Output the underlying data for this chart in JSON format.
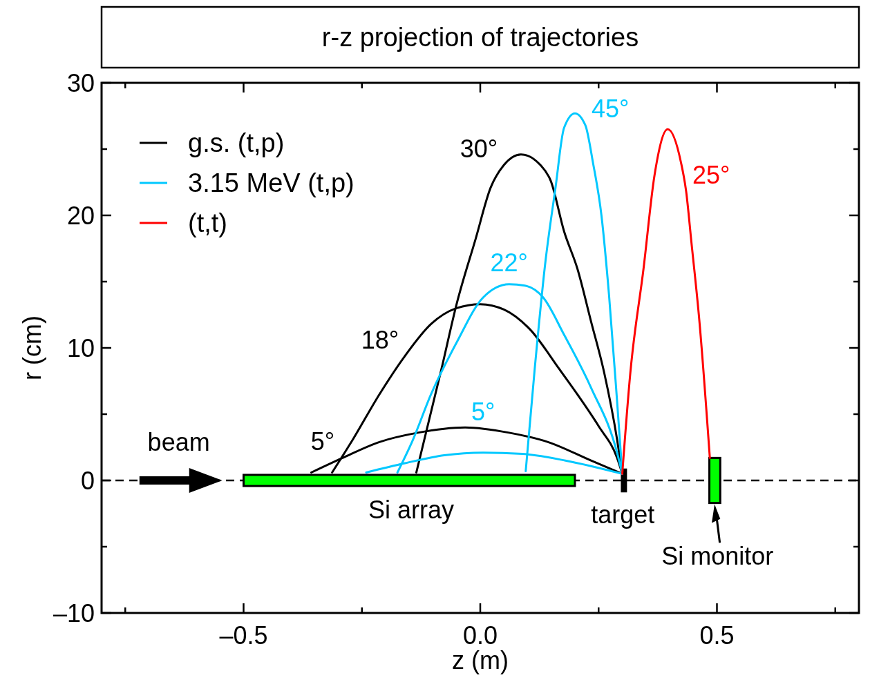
{
  "chart_data": {
    "type": "line",
    "title": "r-z projection of trajectories",
    "xlabel": "z (m)",
    "ylabel": "r (cm)",
    "xlim": [
      -0.8,
      0.8
    ],
    "ylim": [
      -10,
      30
    ],
    "xticks": [
      {
        "value": -0.75,
        "label": null
      },
      {
        "value": -0.5,
        "label": "–0.5"
      },
      {
        "value": -0.25,
        "label": null
      },
      {
        "value": 0,
        "label": "0.0"
      },
      {
        "value": 0.25,
        "label": null
      },
      {
        "value": 0.5,
        "label": "0.5"
      },
      {
        "value": 0.75,
        "label": null
      }
    ],
    "yticks": [
      {
        "value": -10,
        "label": "–10"
      },
      {
        "value": -5,
        "label": null
      },
      0,
      {
        "value": 5,
        "label": null
      },
      10,
      {
        "value": 15,
        "label": null
      },
      20,
      {
        "value": 25,
        "label": null
      },
      30
    ],
    "legend": "top left",
    "marker": "none",
    "line_style": "solid",
    "ref_lines": [
      {
        "axis": "y",
        "value": 0,
        "color": "#000000",
        "line_style": "dashed"
      }
    ],
    "series": [
      {
        "name": "g.s. (t,p)",
        "color": "#000000",
        "x": [
          -0.357,
          -0.291,
          -0.213,
          -0.132,
          -0.032,
          0.061,
          0.143,
          0.234,
          0.3
        ],
        "values": [
          0.6,
          1.7,
          2.9,
          3.6,
          4.0,
          3.6,
          2.9,
          1.5,
          0.5
        ]
      },
      {
        "color": "#000000",
        "x": [
          -0.313,
          -0.269,
          -0.213,
          -0.159,
          -0.104,
          -0.05,
          0.0,
          0.05,
          0.105,
          0.167,
          0.205,
          0.25,
          0.289,
          0.3
        ],
        "values": [
          0.6,
          3.1,
          6.5,
          9.4,
          11.8,
          13.0,
          13.3,
          12.9,
          11.4,
          8.4,
          6.5,
          4.1,
          1.7,
          0.5
        ]
      },
      {
        "color": "#000000",
        "x": [
          -0.135,
          -0.082,
          -0.05,
          -0.01,
          0.022,
          0.05,
          0.086,
          0.127,
          0.149,
          0.177,
          0.205,
          0.234,
          0.262,
          0.289,
          0.3
        ],
        "values": [
          0.6,
          8.4,
          13.3,
          18.2,
          22.1,
          23.8,
          24.6,
          23.8,
          22.6,
          18.8,
          16.0,
          12.0,
          8.1,
          3.1,
          0.5
        ]
      },
      {
        "name": "3.15 MeV (t,p)",
        "color": "#00c8ff",
        "x": [
          -0.241,
          -0.159,
          -0.076,
          0.006,
          0.089,
          0.18,
          0.3
        ],
        "values": [
          0.6,
          1.3,
          1.9,
          2.1,
          2.0,
          1.5,
          0.5
        ]
      },
      {
        "color": "#00c8ff",
        "x": [
          -0.175,
          -0.143,
          -0.104,
          -0.05,
          0.006,
          0.061,
          0.094,
          0.133,
          0.177,
          0.234,
          0.289,
          0.3
        ],
        "values": [
          0.6,
          3.0,
          6.5,
          10.4,
          13.8,
          14.8,
          14.7,
          13.8,
          11.0,
          7.0,
          2.1,
          0.5
        ]
      },
      {
        "color": "#00c8ff",
        "x": [
          0.096,
          0.115,
          0.137,
          0.159,
          0.177,
          0.2,
          0.222,
          0.238,
          0.256,
          0.272,
          0.289,
          0.3
        ],
        "values": [
          0.7,
          8.4,
          16.3,
          22.1,
          26.6,
          27.7,
          26.8,
          24.0,
          20.0,
          14.0,
          6.0,
          0.5
        ]
      },
      {
        "name": "(t,t)",
        "color": "#ff0000",
        "x": [
          0.3,
          0.317,
          0.345,
          0.368,
          0.396,
          0.424,
          0.435,
          0.446,
          0.463,
          0.485
        ],
        "values": [
          0.5,
          8.1,
          16.0,
          23.0,
          26.5,
          24.0,
          21.8,
          18.0,
          12.0,
          1.7
        ]
      }
    ],
    "annotations": [
      {
        "text": "5°",
        "x": -0.291,
        "y": 1.7
      },
      {
        "text": "18°",
        "x": -0.159,
        "y": 9.4
      },
      {
        "text": "30°",
        "x": 0.05,
        "y": 23.8
      },
      {
        "text": "5°",
        "x": 0.006,
        "y": 2.1
      },
      {
        "text": "22°",
        "x": 0.061,
        "y": 14.8
      },
      {
        "text": "45°",
        "x": 0.222,
        "y": 26.8
      },
      {
        "text": "25°",
        "x": 0.435,
        "y": 21.8
      },
      "beam",
      "Si array",
      "target",
      "Si monitor"
    ]
  }
}
